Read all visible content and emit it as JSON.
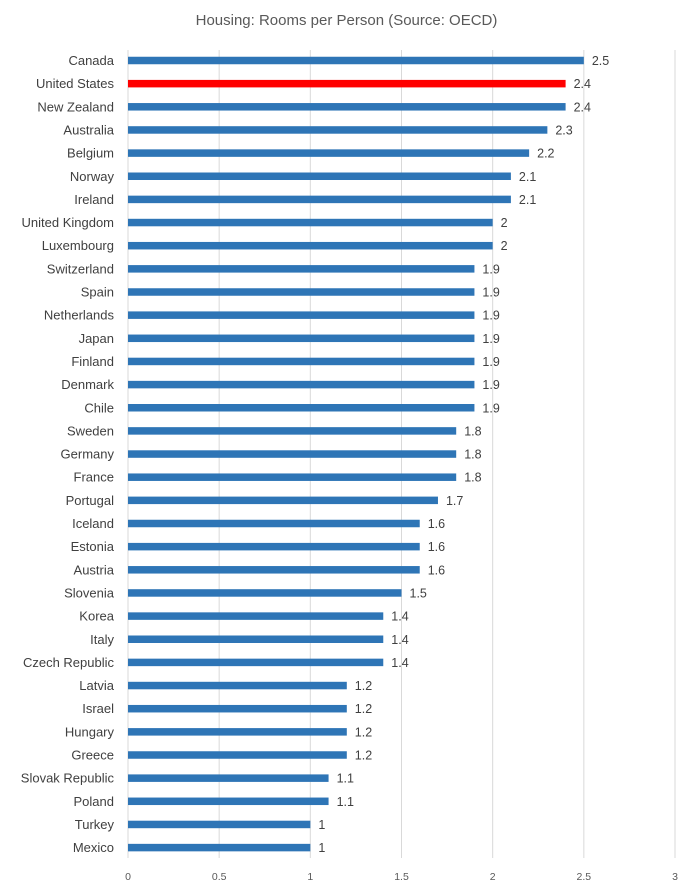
{
  "chart_data": {
    "type": "bar",
    "orientation": "horizontal",
    "title": "Housing: Rooms per Person (Source: OECD)",
    "categories": [
      "Canada",
      "United States",
      "New Zealand",
      "Australia",
      "Belgium",
      "Norway",
      "Ireland",
      "United Kingdom",
      "Luxembourg",
      "Switzerland",
      "Spain",
      "Netherlands",
      "Japan",
      "Finland",
      "Denmark",
      "Chile",
      "Sweden",
      "Germany",
      "France",
      "Portugal",
      "Iceland",
      "Estonia",
      "Austria",
      "Slovenia",
      "Korea",
      "Italy",
      "Czech Republic",
      "Latvia",
      "Israel",
      "Hungary",
      "Greece",
      "Slovak Republic",
      "Poland",
      "Turkey",
      "Mexico"
    ],
    "values": [
      2.5,
      2.4,
      2.4,
      2.3,
      2.2,
      2.1,
      2.1,
      2,
      2,
      1.9,
      1.9,
      1.9,
      1.9,
      1.9,
      1.9,
      1.9,
      1.8,
      1.8,
      1.8,
      1.7,
      1.6,
      1.6,
      1.6,
      1.5,
      1.4,
      1.4,
      1.4,
      1.2,
      1.2,
      1.2,
      1.2,
      1.1,
      1.1,
      1,
      1
    ],
    "value_labels": [
      "2.5",
      "2.4",
      "2.4",
      "2.3",
      "2.2",
      "2.1",
      "2.1",
      "2",
      "2",
      "1.9",
      "1.9",
      "1.9",
      "1.9",
      "1.9",
      "1.9",
      "1.9",
      "1.8",
      "1.8",
      "1.8",
      "1.7",
      "1.6",
      "1.6",
      "1.6",
      "1.5",
      "1.4",
      "1.4",
      "1.4",
      "1.2",
      "1.2",
      "1.2",
      "1.2",
      "1.1",
      "1.1",
      "1",
      "1"
    ],
    "xlim": [
      0,
      3
    ],
    "xticks": [
      0,
      0.5,
      1,
      1.5,
      2,
      2.5,
      3
    ],
    "xtick_labels": [
      "0",
      "0.5",
      "1",
      "1.5",
      "2",
      "2.5",
      "3"
    ],
    "grid": true,
    "colors": {
      "default": "#2e75b6",
      "highlight": "#ff0000",
      "grid": "#d9d9d9"
    },
    "highlight_category": "United States"
  }
}
